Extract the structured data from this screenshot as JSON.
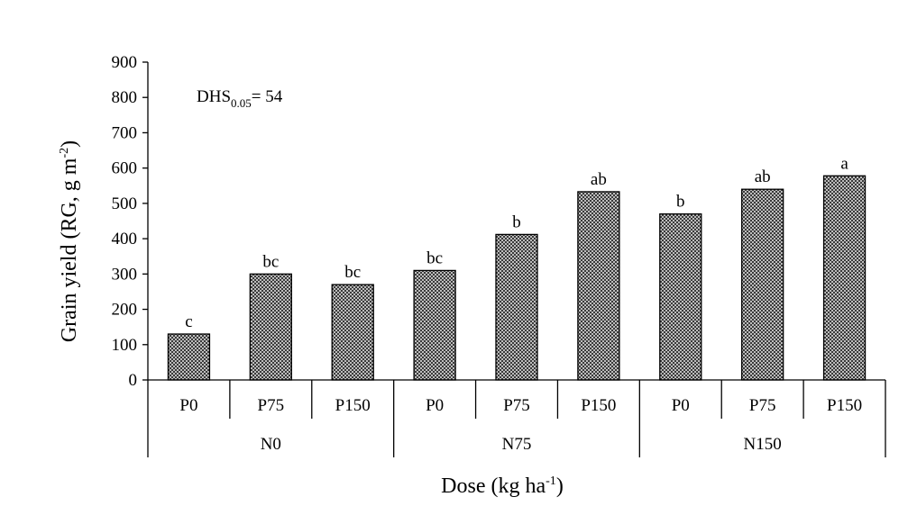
{
  "chart_data": {
    "type": "bar",
    "categories": [
      "P0",
      "P75",
      "P150",
      "P0",
      "P75",
      "P150",
      "P0",
      "P75",
      "P150"
    ],
    "groups": [
      {
        "label": "N0",
        "categories": [
          "P0",
          "P75",
          "P150"
        ]
      },
      {
        "label": "N75",
        "categories": [
          "P0",
          "P75",
          "P150"
        ]
      },
      {
        "label": "N150",
        "categories": [
          "P0",
          "P75",
          "P150"
        ]
      }
    ],
    "values": [
      130,
      300,
      270,
      310,
      412,
      533,
      470,
      540,
      578
    ],
    "bar_labels": [
      "c",
      "bc",
      "bc",
      "bc",
      "b",
      "ab",
      "b",
      "ab",
      "a"
    ],
    "ylim": [
      0,
      900
    ],
    "yticks": [
      0,
      100,
      200,
      300,
      400,
      500,
      600,
      700,
      800,
      900
    ],
    "ylabel": {
      "main": "Grain yield (RG, g m",
      "sup": "-2",
      "close": ")"
    },
    "xlabel": {
      "main": "Dose (kg ha",
      "sup": "-1",
      "close": ")"
    },
    "annotation": {
      "main": "DHS",
      "sub": "0.05",
      "rest": "= 54"
    },
    "bar_fill": "#7a7a7a",
    "grid": false
  }
}
